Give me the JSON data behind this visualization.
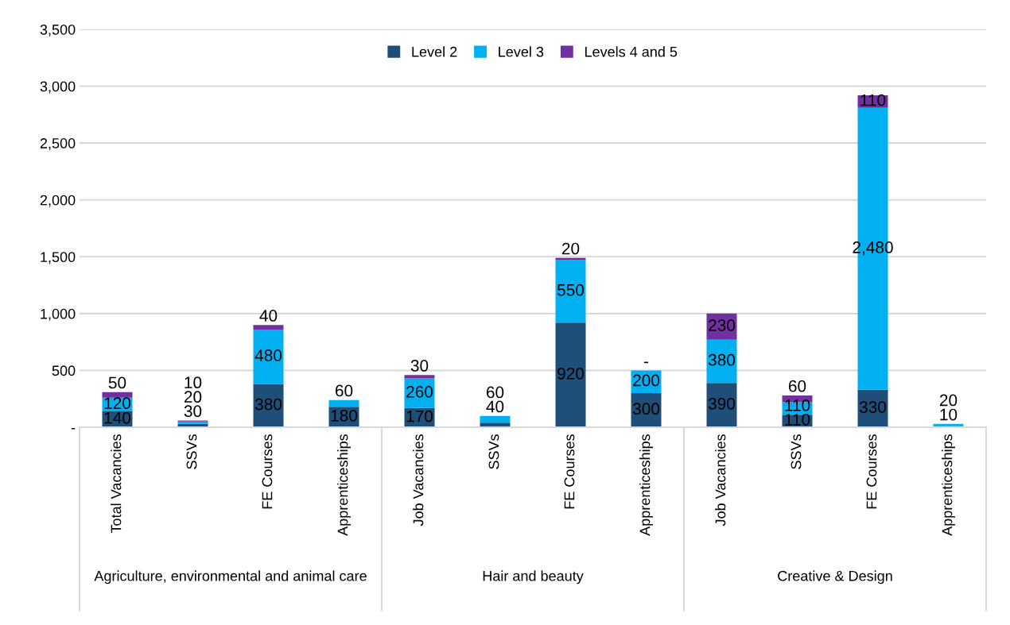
{
  "chart_data": {
    "type": "bar",
    "stacked": true,
    "categories": [
      "Total Vacancies",
      "SSVs",
      "FE Courses",
      "Apprenticeships",
      "Job Vacancies",
      "SSVs",
      "FE Courses",
      "Apprenticeships",
      "Job Vacancies",
      "SSVs",
      "FE Courses",
      "Apprenticeships"
    ],
    "series": [
      {
        "name": "Level 2",
        "color": "#1f4e79",
        "values": [
          140,
          30,
          380,
          180,
          170,
          40,
          920,
          300,
          390,
          110,
          330,
          10
        ],
        "value_labels": [
          "140",
          "30",
          "380",
          "180",
          "170",
          "40",
          "920",
          "300",
          "390",
          "110",
          "330",
          "10"
        ]
      },
      {
        "name": "Level 3",
        "color": "#00b0f0",
        "values": [
          120,
          20,
          480,
          60,
          260,
          60,
          550,
          200,
          380,
          110,
          2480,
          20
        ],
        "value_labels": [
          "120",
          "20",
          "480",
          "60",
          "260",
          "60",
          "550",
          "200",
          "380",
          "110",
          "2,480",
          "20"
        ]
      },
      {
        "name": "Levels 4 and 5",
        "color": "#7030a0",
        "values": [
          50,
          10,
          40,
          null,
          30,
          null,
          20,
          0,
          230,
          60,
          110,
          null
        ],
        "value_labels": [
          "50",
          "10",
          "40",
          null,
          "30",
          null,
          "20",
          "-",
          "230",
          "60",
          "110",
          null
        ]
      }
    ],
    "annotations": [
      "Agriculture, environmental and animal care",
      "Hair and beauty",
      "Creative & Design"
    ],
    "ylim": [
      0,
      3500
    ],
    "yticks": [
      {
        "value": 0,
        "label": "-"
      },
      500,
      {
        "value": 1000,
        "label": "1,000"
      },
      {
        "value": 1500,
        "label": "1,500"
      },
      {
        "value": 2000,
        "label": "2,000"
      },
      {
        "value": 2500,
        "label": "2,500"
      },
      {
        "value": 3000,
        "label": "3,000"
      },
      {
        "value": 3500,
        "label": "3,500"
      }
    ],
    "grid": "y",
    "legend": "top"
  }
}
